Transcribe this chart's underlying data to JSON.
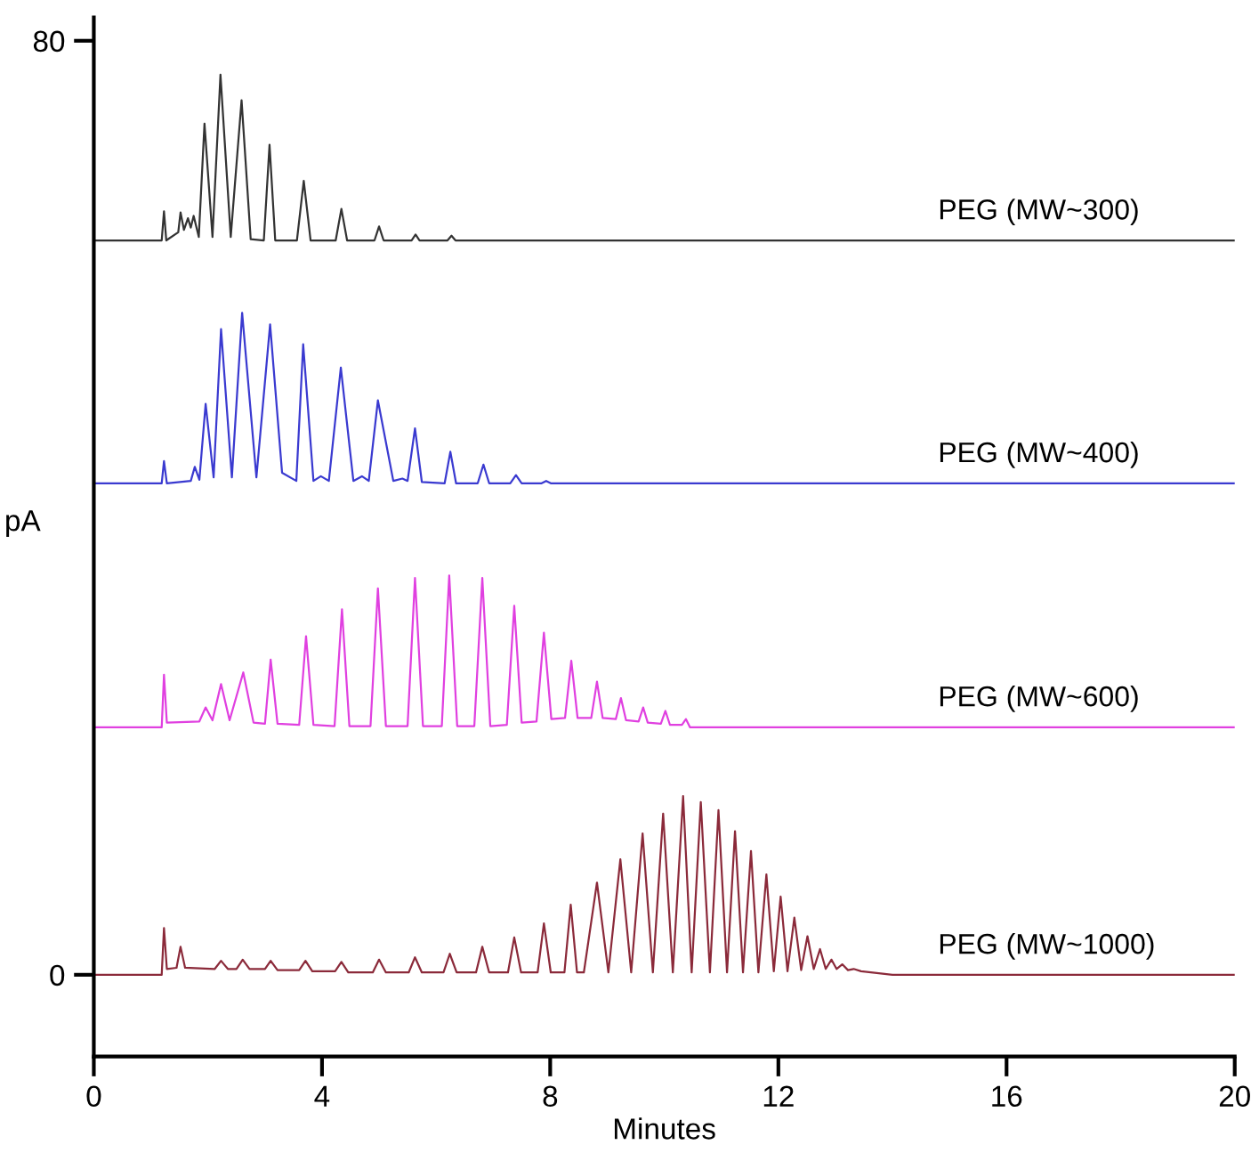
{
  "chart_data": {
    "type": "line",
    "xlabel": "Minutes",
    "ylabel": "pA",
    "xlim": [
      0,
      20
    ],
    "xticks": [
      0,
      4,
      8,
      12,
      16,
      20
    ],
    "ylim": [
      -7,
      82
    ],
    "yticks": [
      0,
      80
    ],
    "grid": false,
    "legend": false,
    "marker": "none",
    "line_style": "solid",
    "series": [
      {
        "name": "PEG (MW~300)",
        "color": "#333333",
        "x": [
          0,
          1.19,
          1.23,
          1.27,
          1.48,
          1.52,
          1.58,
          1.65,
          1.7,
          1.75,
          1.84,
          1.94,
          2.08,
          2.22,
          2.4,
          2.59,
          2.75,
          2.98,
          3.08,
          3.18,
          3.56,
          3.68,
          3.8,
          4.24,
          4.34,
          4.44,
          4.92,
          5.0,
          5.08,
          5.57,
          5.64,
          5.71,
          6.2,
          6.27,
          6.34,
          20
        ],
        "values": [
          62.9,
          62.9,
          65.4,
          62.9,
          63.6,
          65.3,
          63.8,
          64.8,
          64.0,
          65.0,
          63.2,
          72.9,
          63.2,
          77.1,
          63.2,
          74.9,
          63.0,
          62.9,
          71.1,
          62.9,
          62.9,
          68.0,
          62.9,
          62.9,
          65.6,
          62.9,
          62.9,
          64.1,
          62.9,
          62.9,
          63.4,
          62.9,
          62.9,
          63.3,
          62.9,
          62.9
        ]
      },
      {
        "name": "PEG (MW~400)",
        "color": "#3a3ad0",
        "x": [
          0,
          1.19,
          1.23,
          1.28,
          1.7,
          1.77,
          1.85,
          1.96,
          2.1,
          2.23,
          2.42,
          2.6,
          2.85,
          3.09,
          3.3,
          3.55,
          3.67,
          3.85,
          3.98,
          4.12,
          4.33,
          4.55,
          4.7,
          4.82,
          4.98,
          5.25,
          5.41,
          5.5,
          5.63,
          5.75,
          6.15,
          6.25,
          6.35,
          6.73,
          6.83,
          6.93,
          7.3,
          7.4,
          7.5,
          7.85,
          7.93,
          8.01,
          20
        ],
        "values": [
          42.1,
          42.1,
          44.0,
          42.1,
          42.3,
          43.5,
          42.4,
          48.9,
          42.6,
          55.3,
          42.6,
          56.7,
          42.6,
          55.7,
          43.0,
          42.3,
          54.0,
          42.3,
          42.7,
          42.3,
          52.0,
          42.3,
          42.7,
          42.3,
          49.2,
          42.3,
          42.5,
          42.3,
          46.8,
          42.2,
          42.1,
          44.8,
          42.1,
          42.1,
          43.7,
          42.1,
          42.1,
          42.8,
          42.1,
          42.1,
          42.3,
          42.1,
          42.1
        ]
      },
      {
        "name": "PEG (MW~600)",
        "color": "#e040e0",
        "x": [
          0,
          1.19,
          1.23,
          1.28,
          1.85,
          1.96,
          2.08,
          2.23,
          2.38,
          2.62,
          2.8,
          3.0,
          3.1,
          3.22,
          3.6,
          3.72,
          3.85,
          4.22,
          4.35,
          4.48,
          4.85,
          4.98,
          5.12,
          5.5,
          5.63,
          5.77,
          6.1,
          6.23,
          6.37,
          6.67,
          6.81,
          6.95,
          7.24,
          7.37,
          7.5,
          7.76,
          7.89,
          8.02,
          8.26,
          8.37,
          8.48,
          8.72,
          8.82,
          8.92,
          9.15,
          9.24,
          9.33,
          9.55,
          9.63,
          9.71,
          9.94,
          10.02,
          10.1,
          10.31,
          10.38,
          10.45,
          20
        ],
        "values": [
          21.2,
          21.2,
          25.7,
          21.6,
          21.7,
          22.9,
          21.8,
          24.9,
          21.8,
          25.9,
          21.6,
          21.5,
          27.0,
          21.5,
          21.4,
          29.0,
          21.4,
          21.3,
          31.3,
          21.3,
          21.3,
          33.1,
          21.3,
          21.3,
          34.0,
          21.3,
          21.3,
          34.2,
          21.3,
          21.3,
          34.0,
          21.3,
          21.4,
          31.6,
          21.6,
          21.7,
          29.3,
          21.9,
          22.0,
          26.9,
          22.0,
          22.0,
          25.1,
          22.0,
          21.9,
          23.7,
          21.8,
          21.7,
          22.9,
          21.6,
          21.5,
          22.6,
          21.4,
          21.4,
          21.9,
          21.2,
          21.2
        ]
      },
      {
        "name": "PEG (MW~1000)",
        "color": "#8b2a3a",
        "x": [
          0,
          1.19,
          1.23,
          1.28,
          1.45,
          1.52,
          1.6,
          2.12,
          2.23,
          2.35,
          2.5,
          2.61,
          2.73,
          3.0,
          3.1,
          3.22,
          3.6,
          3.71,
          3.83,
          4.23,
          4.34,
          4.46,
          4.89,
          5.0,
          5.12,
          5.52,
          5.63,
          5.75,
          6.13,
          6.24,
          6.36,
          6.7,
          6.81,
          6.93,
          7.26,
          7.37,
          7.49,
          7.78,
          7.89,
          8.01,
          8.25,
          8.36,
          8.47,
          8.59,
          8.82,
          9.02,
          9.23,
          9.42,
          9.62,
          9.8,
          9.98,
          10.15,
          10.33,
          10.48,
          10.64,
          10.8,
          10.95,
          11.1,
          11.24,
          11.38,
          11.52,
          11.65,
          11.79,
          11.92,
          12.04,
          12.16,
          12.28,
          12.4,
          12.51,
          12.62,
          12.73,
          12.83,
          12.93,
          13.02,
          13.12,
          13.22,
          13.32,
          13.45,
          14.0,
          20
        ],
        "values": [
          0,
          0,
          4.0,
          0.5,
          0.6,
          2.4,
          0.6,
          0.5,
          1.2,
          0.5,
          0.5,
          1.3,
          0.5,
          0.5,
          1.2,
          0.4,
          0.4,
          1.2,
          0.3,
          0.3,
          1.1,
          0.2,
          0.2,
          1.3,
          0.2,
          0.2,
          1.5,
          0.2,
          0.2,
          1.8,
          0.2,
          0.2,
          2.4,
          0.2,
          0.2,
          3.2,
          0.2,
          0.2,
          4.4,
          0.2,
          0.2,
          6.0,
          0.2,
          0.2,
          7.9,
          0.2,
          9.9,
          0.2,
          12.1,
          0.2,
          13.8,
          0.2,
          15.3,
          0.2,
          14.8,
          0.2,
          14.1,
          0.2,
          12.3,
          0.2,
          10.6,
          0.2,
          8.6,
          0.3,
          6.7,
          0.3,
          4.9,
          0.4,
          3.3,
          0.5,
          2.2,
          0.5,
          1.3,
          0.5,
          0.9,
          0.4,
          0.5,
          0.3,
          0,
          0
        ]
      }
    ]
  }
}
